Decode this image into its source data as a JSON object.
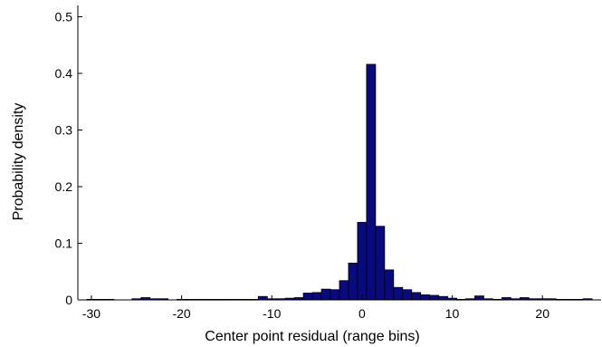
{
  "chart_data": {
    "type": "bar",
    "title": "",
    "xlabel": "Center point residual (range bins)",
    "ylabel": "Probability density",
    "xlim": [
      -31.5,
      26.5
    ],
    "ylim": [
      0,
      0.52
    ],
    "xticks": [
      -30,
      -20,
      -10,
      0,
      10,
      20
    ],
    "xtick_labels": [
      "-30",
      "-20",
      "-10",
      "0",
      "10",
      "20"
    ],
    "yticks": [
      0,
      0.1,
      0.2,
      0.3,
      0.4,
      0.5
    ],
    "ytick_labels": [
      "0",
      "0.1",
      "0.2",
      "0.3",
      "0.4",
      "0.5"
    ],
    "grid": false,
    "bar_color": "#0a0a80",
    "bar_edge_color": "#000000",
    "x": [
      -30,
      -29,
      -28,
      -27,
      -26,
      -25,
      -24,
      -23,
      -22,
      -21,
      -20,
      -19,
      -18,
      -17,
      -16,
      -15,
      -14,
      -13,
      -12,
      -11,
      -10,
      -9,
      -8,
      -7,
      -6,
      -5,
      -4,
      -3,
      -2,
      -1,
      0,
      1,
      2,
      3,
      4,
      5,
      6,
      7,
      8,
      9,
      10,
      11,
      12,
      13,
      14,
      15,
      16,
      17,
      18,
      19,
      20,
      21,
      22,
      23,
      24,
      25,
      26
    ],
    "values": [
      0.001,
      0.001,
      0.001,
      0,
      0,
      0.002,
      0.004,
      0.002,
      0.002,
      0,
      0.001,
      0.001,
      0.001,
      0.001,
      0.001,
      0.001,
      0.001,
      0.001,
      0.001,
      0.006,
      0.002,
      0.002,
      0.003,
      0.004,
      0.012,
      0.013,
      0.019,
      0.018,
      0.034,
      0.065,
      0.137,
      0.416,
      0.13,
      0.053,
      0.022,
      0.018,
      0.013,
      0.009,
      0.008,
      0.006,
      0.003,
      0.001,
      0.002,
      0.007,
      0.002,
      0.001,
      0.004,
      0.002,
      0.004,
      0.002,
      0.002,
      0.002,
      0.001,
      0.001,
      0.001,
      0.002,
      0
    ]
  }
}
